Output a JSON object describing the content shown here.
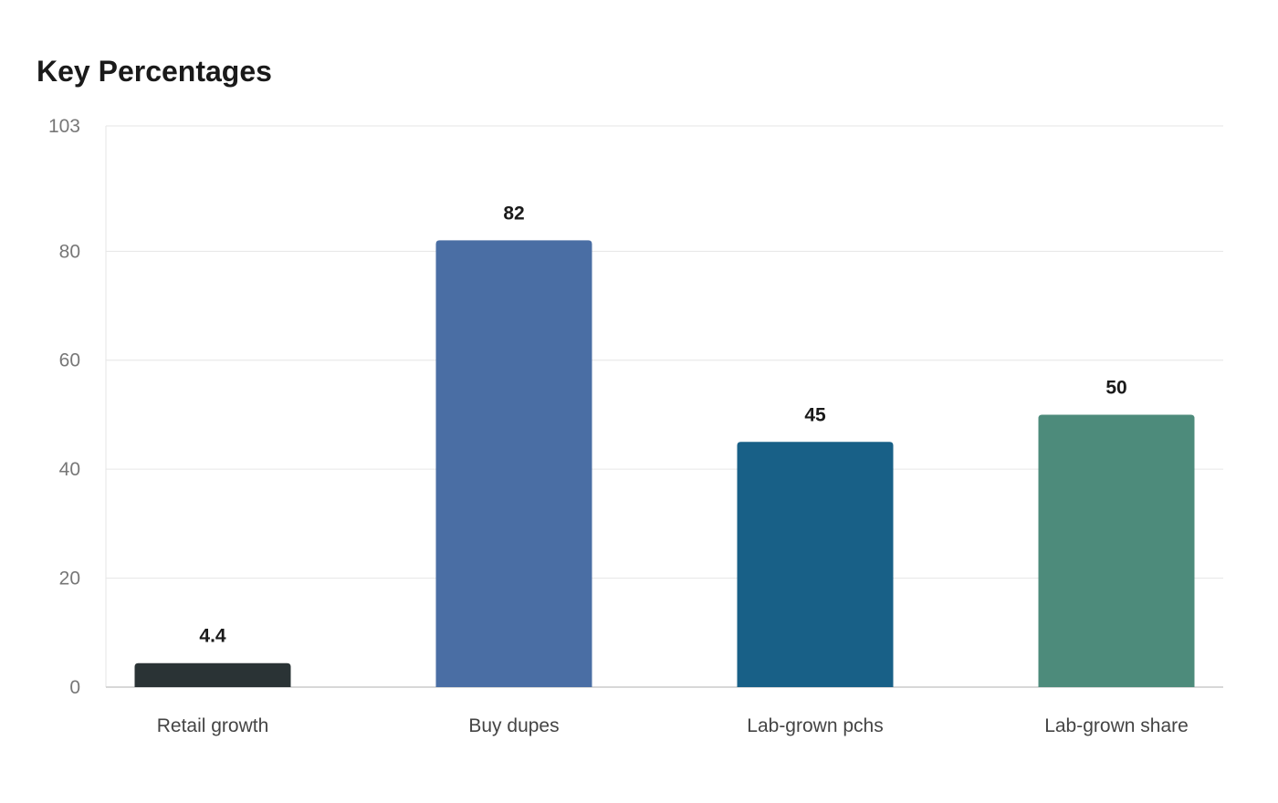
{
  "chart_data": {
    "type": "bar",
    "title": "Key Percentages",
    "xlabel": "",
    "ylabel": "",
    "categories": [
      "Retail growth",
      "Buy dupes",
      "Lab-grown pchs",
      "Lab-grown share"
    ],
    "values": [
      4.4,
      82,
      45,
      50
    ],
    "value_labels": [
      "4.4",
      "82",
      "45",
      "50"
    ],
    "bar_colors": [
      "#2a3335",
      "#4a6ea4",
      "#186087",
      "#4d8b7b"
    ],
    "yticks": [
      0,
      20,
      40,
      60,
      80,
      103
    ],
    "ylim": [
      0,
      103
    ],
    "grid": true,
    "legend": "none"
  }
}
